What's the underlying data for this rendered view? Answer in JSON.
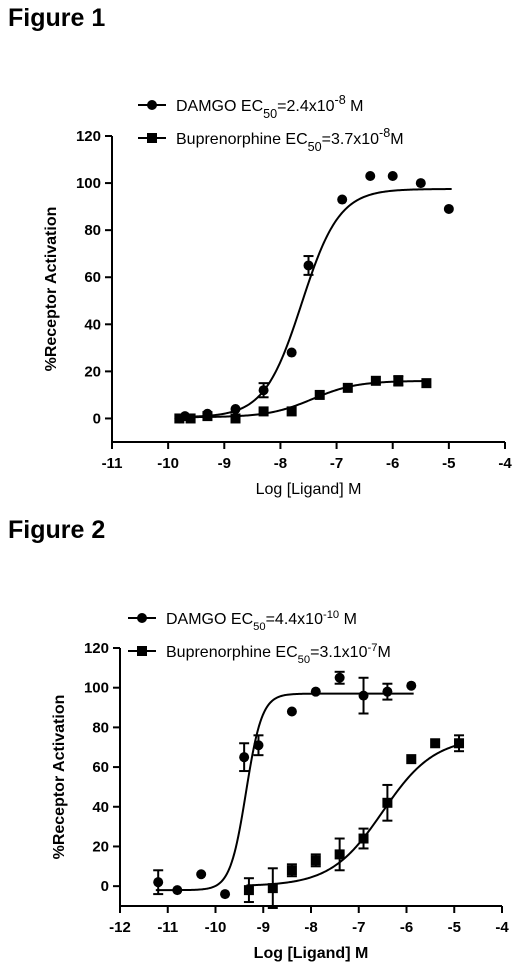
{
  "figures": [
    {
      "title": "Figure 1",
      "legend": [
        {
          "name": "DAMGO",
          "ec_text": "DAMGO EC",
          "ec_sub": "50",
          "ec_value": "=2.4x10",
          "ec_sup": "-8",
          "ec_unit": " M",
          "marker": "circle"
        },
        {
          "name": "Buprenorphine",
          "ec_text": "Buprenorphine EC",
          "ec_sub": "50",
          "ec_value": "=3.7x10",
          "ec_sup": "-8",
          "ec_unit": "M",
          "marker": "square"
        }
      ]
    },
    {
      "title": "Figure 2",
      "legend": [
        {
          "name": "DAMGO",
          "ec_text": "DAMGO EC",
          "ec_sub": "50",
          "ec_value": "=4.4x10",
          "ec_sup": "-10",
          "ec_unit": " M",
          "marker": "circle"
        },
        {
          "name": "Buprenorphine",
          "ec_text": "Buprenorphine EC",
          "ec_sub": "50",
          "ec_value": "=3.1x10",
          "ec_sup": "-7",
          "ec_unit": "M",
          "marker": "square"
        }
      ]
    }
  ],
  "chart_data": [
    {
      "type": "scatter",
      "title": "",
      "xlabel": "Log [Ligand] M",
      "ylabel": "%Receptor Activation",
      "xlim": [
        -11,
        -4
      ],
      "ylim": [
        -10,
        120
      ],
      "xticks": [
        -11,
        -10,
        -9,
        -8,
        -7,
        -6,
        -5,
        -4
      ],
      "yticks": [
        0,
        20,
        40,
        60,
        80,
        100,
        120
      ],
      "grid": false,
      "legend_position": "top-left",
      "series": [
        {
          "name": "DAMGO",
          "marker": "circle",
          "x": [
            -9.8,
            -9.7,
            -9.3,
            -8.8,
            -8.3,
            -7.8,
            -7.5,
            -6.9,
            -6.4,
            -6.0,
            -5.5,
            -5.0
          ],
          "y": [
            0,
            1,
            2,
            4,
            12,
            28,
            65,
            93,
            103,
            103,
            100,
            89
          ],
          "err": [
            0,
            0,
            0,
            0,
            3,
            0,
            4,
            0,
            0,
            0,
            0,
            0
          ],
          "fit": {
            "bottom": 0.5,
            "top": 97.5,
            "logEC50": -7.62,
            "hill": 1.3
          }
        },
        {
          "name": "Buprenorphine",
          "marker": "square",
          "x": [
            -9.8,
            -9.6,
            -9.3,
            -8.8,
            -8.3,
            -7.8,
            -7.3,
            -6.8,
            -6.3,
            -5.9,
            -5.4
          ],
          "y": [
            0,
            0,
            1,
            0,
            3,
            3,
            10,
            13,
            16,
            16,
            15
          ],
          "err": [
            0,
            0,
            0,
            0,
            0,
            0,
            0,
            0,
            0,
            2,
            0
          ],
          "fit": {
            "bottom": 0.5,
            "top": 16,
            "logEC50": -7.43,
            "hill": 1.1
          }
        }
      ]
    },
    {
      "type": "scatter",
      "title": "",
      "xlabel": "Log [Ligand] M",
      "ylabel": "%Receptor Activation",
      "xlim": [
        -12,
        -4
      ],
      "ylim": [
        -10,
        120
      ],
      "xticks": [
        -12,
        -11,
        -10,
        -9,
        -8,
        -7,
        -6,
        -5,
        -4
      ],
      "yticks": [
        0,
        20,
        40,
        60,
        80,
        100,
        120
      ],
      "grid": false,
      "legend_position": "top-left",
      "series": [
        {
          "name": "DAMGO",
          "marker": "circle",
          "x": [
            -11.2,
            -10.8,
            -10.3,
            -9.8,
            -9.4,
            -9.1,
            -8.4,
            -7.9,
            -7.4,
            -6.9,
            -6.4,
            -5.9
          ],
          "y": [
            2,
            -2,
            6,
            -4,
            65,
            71,
            88,
            98,
            105,
            96,
            98,
            101
          ],
          "err": [
            6,
            0,
            0,
            0,
            7,
            5,
            0,
            0,
            3,
            9,
            4,
            0
          ],
          "fit": {
            "bottom": -2,
            "top": 97,
            "logEC50": -9.36,
            "hill": 2.6
          }
        },
        {
          "name": "Buprenorphine",
          "marker": "square",
          "x": [
            -9.3,
            -8.8,
            -8.4,
            -7.9,
            -7.4,
            -6.9,
            -6.4,
            -5.9,
            -5.4,
            -4.9
          ],
          "y": [
            -2,
            -1,
            8,
            13,
            16,
            24,
            42,
            64,
            72,
            72
          ],
          "err": [
            6,
            10,
            3,
            3,
            8,
            5,
            9,
            0,
            0,
            4
          ],
          "fit": {
            "bottom": 0,
            "top": 75,
            "logEC50": -6.5,
            "hill": 0.8
          }
        }
      ]
    }
  ]
}
